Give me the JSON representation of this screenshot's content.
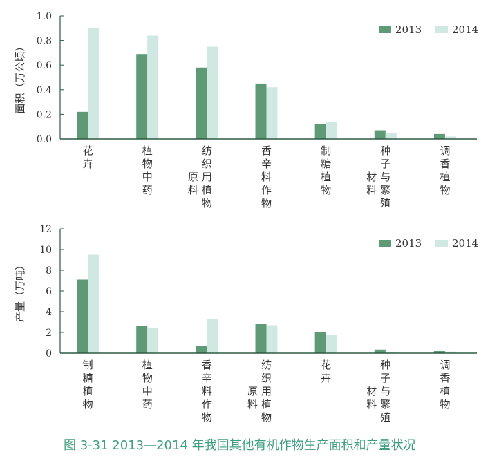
{
  "chart_data": [
    {
      "type": "bar",
      "categories": [
        [
          "花",
          "卉"
        ],
        [
          "植",
          "物",
          "中",
          "药"
        ],
        [
          "纺",
          "织",
          "用",
          "植",
          "物",
          "|原",
          "料"
        ],
        [
          "香",
          "辛",
          "料",
          "作",
          "物"
        ],
        [
          "制",
          "糖",
          "植",
          "物"
        ],
        [
          "种",
          "子",
          "与",
          "繁",
          "殖",
          "|材",
          "料"
        ],
        [
          "调",
          "香",
          "植",
          "物"
        ]
      ],
      "series": [
        {
          "name": "2013",
          "values": [
            0.22,
            0.69,
            0.58,
            0.45,
            0.12,
            0.07,
            0.04
          ]
        },
        {
          "name": "2014",
          "values": [
            0.9,
            0.84,
            0.75,
            0.42,
            0.14,
            0.05,
            0.02
          ]
        }
      ],
      "ylabel": "面积（万公顷）",
      "ylim": [
        0,
        1.0
      ],
      "yticks": [
        "0.0",
        "0.2",
        "0.4",
        "0.6",
        "0.8",
        "1.0"
      ],
      "legend": "top-right"
    },
    {
      "type": "bar",
      "categories": [
        [
          "制",
          "糖",
          "植",
          "物"
        ],
        [
          "植",
          "物",
          "中",
          "药"
        ],
        [
          "香",
          "辛",
          "料",
          "作",
          "物"
        ],
        [
          "纺",
          "织",
          "用",
          "植",
          "物",
          "|原",
          "料"
        ],
        [
          "花",
          "卉"
        ],
        [
          "种",
          "子",
          "与",
          "繁",
          "殖",
          "|材",
          "料"
        ],
        [
          "调",
          "香",
          "植",
          "物"
        ]
      ],
      "series": [
        {
          "name": "2013",
          "values": [
            7.1,
            2.6,
            0.7,
            2.8,
            2.0,
            0.35,
            0.2
          ]
        },
        {
          "name": "2014",
          "values": [
            9.5,
            2.4,
            3.3,
            2.7,
            1.8,
            0.1,
            0.15
          ]
        }
      ],
      "ylabel": "产量（万吨）",
      "ylim": [
        0,
        12
      ],
      "yticks": [
        "0",
        "2",
        "4",
        "6",
        "8",
        "10",
        "12"
      ],
      "legend": "top-right"
    }
  ],
  "colors": {
    "s2013": "#5e9a76",
    "s2014": "#cfe8e1",
    "axis": "#2d5a44",
    "caption": "#3e9e7f"
  },
  "caption": "图 3-31    2013—2014 年我国其他有机作物生产面积和产量状况"
}
